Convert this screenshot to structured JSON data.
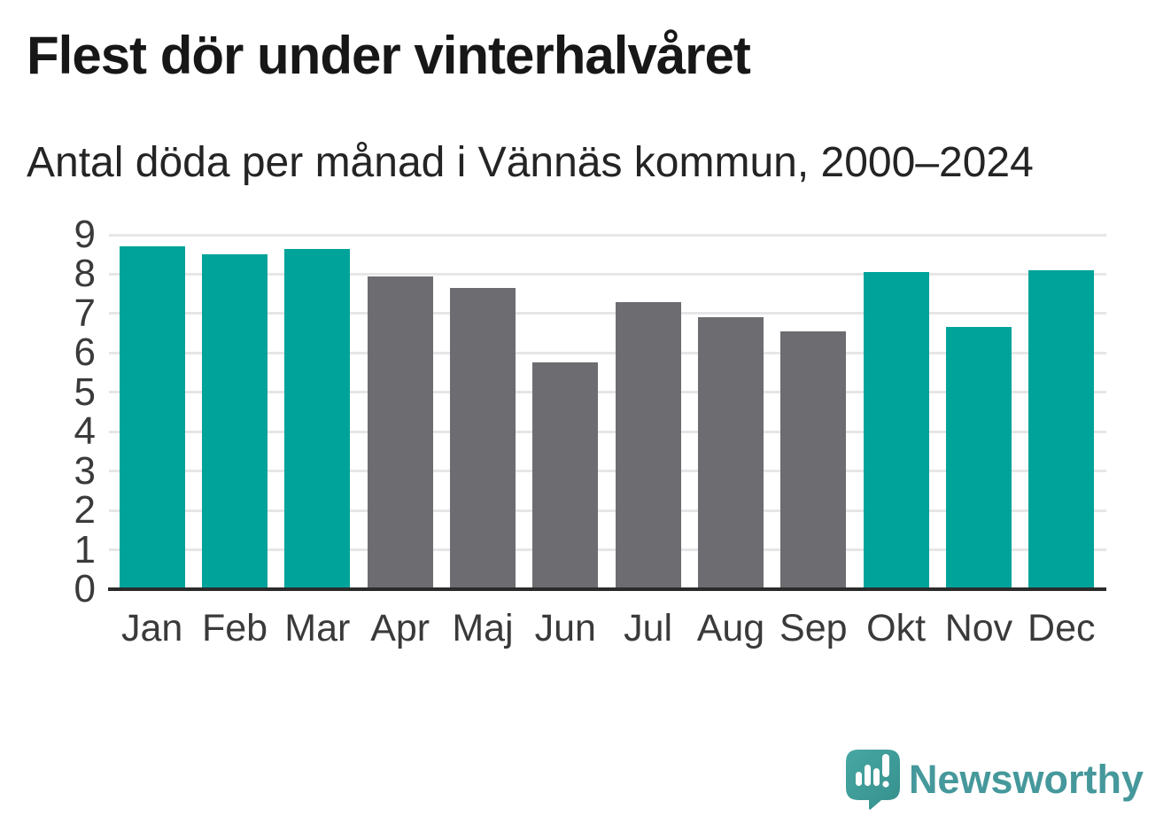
{
  "header": {
    "title": "Flest dör under vinterhalvåret",
    "subtitle": "Antal döda per månad i Vännäs kommun, 2000–2024"
  },
  "chart_data": {
    "type": "bar",
    "title": "Flest dör under vinterhalvåret",
    "subtitle": "Antal döda per månad i Vännäs kommun, 2000–2024",
    "categories": [
      "Jan",
      "Feb",
      "Mar",
      "Apr",
      "Maj",
      "Jun",
      "Jul",
      "Aug",
      "Sep",
      "Okt",
      "Nov",
      "Dec"
    ],
    "values": [
      8.7,
      8.5,
      8.65,
      7.95,
      7.65,
      5.75,
      7.3,
      6.9,
      6.55,
      8.05,
      6.65,
      8.1
    ],
    "bar_colors": [
      "#00a39a",
      "#00a39a",
      "#00a39a",
      "#6c6c71",
      "#6c6c71",
      "#6c6c71",
      "#6c6c71",
      "#6c6c71",
      "#6c6c71",
      "#00a39a",
      "#00a39a",
      "#00a39a"
    ],
    "highlight_color": "#00a39a",
    "muted_color": "#6c6c71",
    "xlabel": "",
    "ylabel": "",
    "ylim": [
      0,
      9
    ],
    "yticks": [
      0,
      1,
      2,
      3,
      4,
      5,
      6,
      7,
      8,
      9
    ],
    "grid": "horizontal",
    "legend": "none"
  },
  "branding": {
    "logo_text": "Newsworthy",
    "logo_color": "#45989b",
    "logo_icon": "newsworthy-speech-bubble-bar-chart-icon",
    "logo_icon_color": "#3f9c99"
  }
}
